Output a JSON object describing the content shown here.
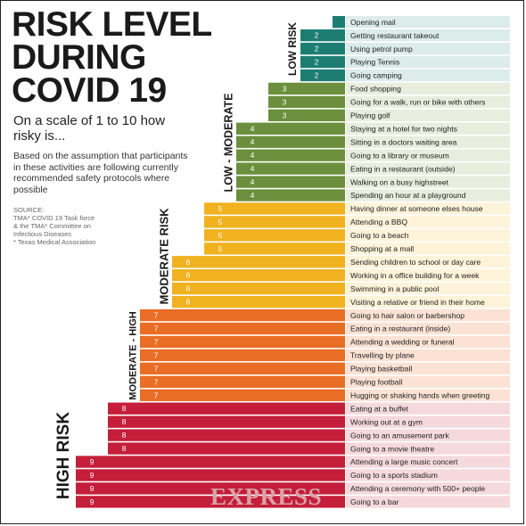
{
  "header": {
    "title_lines": [
      "RISK LEVEL",
      "DURING",
      "COVID 19"
    ],
    "question": "On a scale of 1 to 10 how risky is...",
    "assumption": "Based on the assumption that participants in these activities are following currently recommended safety protocols where possible",
    "source_lines": [
      "SOURCE:",
      "TMA* COVID 19 Task force",
      "& the TMA* Committee on",
      "Infectious Diseases",
      "* Texas Medical Association"
    ]
  },
  "bands": [
    {
      "label": "LOW RISK",
      "color": "#1d7d73",
      "row_bg": "#dcecea"
    },
    {
      "label": "LOW - MODERATE",
      "color": "#6b8f3c",
      "row_bg": "#e8eede"
    },
    {
      "label": "MODERATE RISK",
      "color": "#f0b21f",
      "row_bg": "#fdf3d9"
    },
    {
      "label": "MODERATE - HIGH",
      "color": "#ea6d25",
      "row_bg": "#fbe2d4"
    },
    {
      "label": "HIGH RISK",
      "color": "#c41e3a",
      "row_bg": "#f5d9dd"
    }
  ],
  "watermark": "EXPRESS",
  "chart_data": {
    "type": "bar",
    "orientation": "horizontal",
    "title": "RISK LEVEL DURING COVID 19",
    "xlim": [
      0,
      10
    ],
    "categories": [
      "Opening mail",
      "Getting restaurant takeout",
      "Using petrol pump",
      "Playing Tennis",
      "Going camping",
      "Food shopping",
      "Going for a walk, run or bike with others",
      "Playing golf",
      "Staying at a hotel for two nights",
      "Sitting in a doctors waiting area",
      "Going to a library or museum",
      "Eating in a restaurant (outside)",
      "Walking on a busy highstreet",
      "Spending an hour at a playground",
      "Having dinner at someone elses house",
      "Attending a BBQ",
      "Going to a beach",
      "Shopping at a mall",
      "Sending children to school or day care",
      "Working in a office building for a week",
      "Swimming in a public pool",
      "Visiting a relative or friend in their home",
      "Going to hair salon or barbershop",
      "Eating in a restaurant (inside)",
      "Attending a wedding or funeral",
      "Travelling by plane",
      "Playing basketball",
      "Playing football",
      "Hugging or shaking hands when greeting",
      "Eating at a buffet",
      "Working out at a gym",
      "Going to an amusement park",
      "Going to a movie theatre",
      "Attending a large music concert",
      "Going to a sports stadium",
      "Attending a ceremony with 500+ people",
      "Going to a bar"
    ],
    "values": [
      1,
      2,
      2,
      2,
      2,
      3,
      3,
      3,
      4,
      4,
      4,
      4,
      4,
      4,
      5,
      5,
      5,
      5,
      6,
      6,
      6,
      6,
      7,
      7,
      7,
      7,
      7,
      7,
      7,
      8,
      8,
      8,
      8,
      9,
      9,
      9,
      9
    ],
    "level_colors": {
      "1": "#1d7d73",
      "2": "#1d7d73",
      "3": "#6b8f3c",
      "4": "#6b8f3c",
      "5": "#f0b21f",
      "6": "#f0b21f",
      "7": "#ea6d25",
      "8": "#c41e3a",
      "9": "#c41e3a"
    },
    "level_row_bg": {
      "1": "#dcecea",
      "2": "#dcecea",
      "3": "#e8eede",
      "4": "#e8eede",
      "5": "#fdf3d9",
      "6": "#fdf3d9",
      "7": "#fbe2d4",
      "8": "#f5d9dd",
      "9": "#f5d9dd"
    }
  }
}
